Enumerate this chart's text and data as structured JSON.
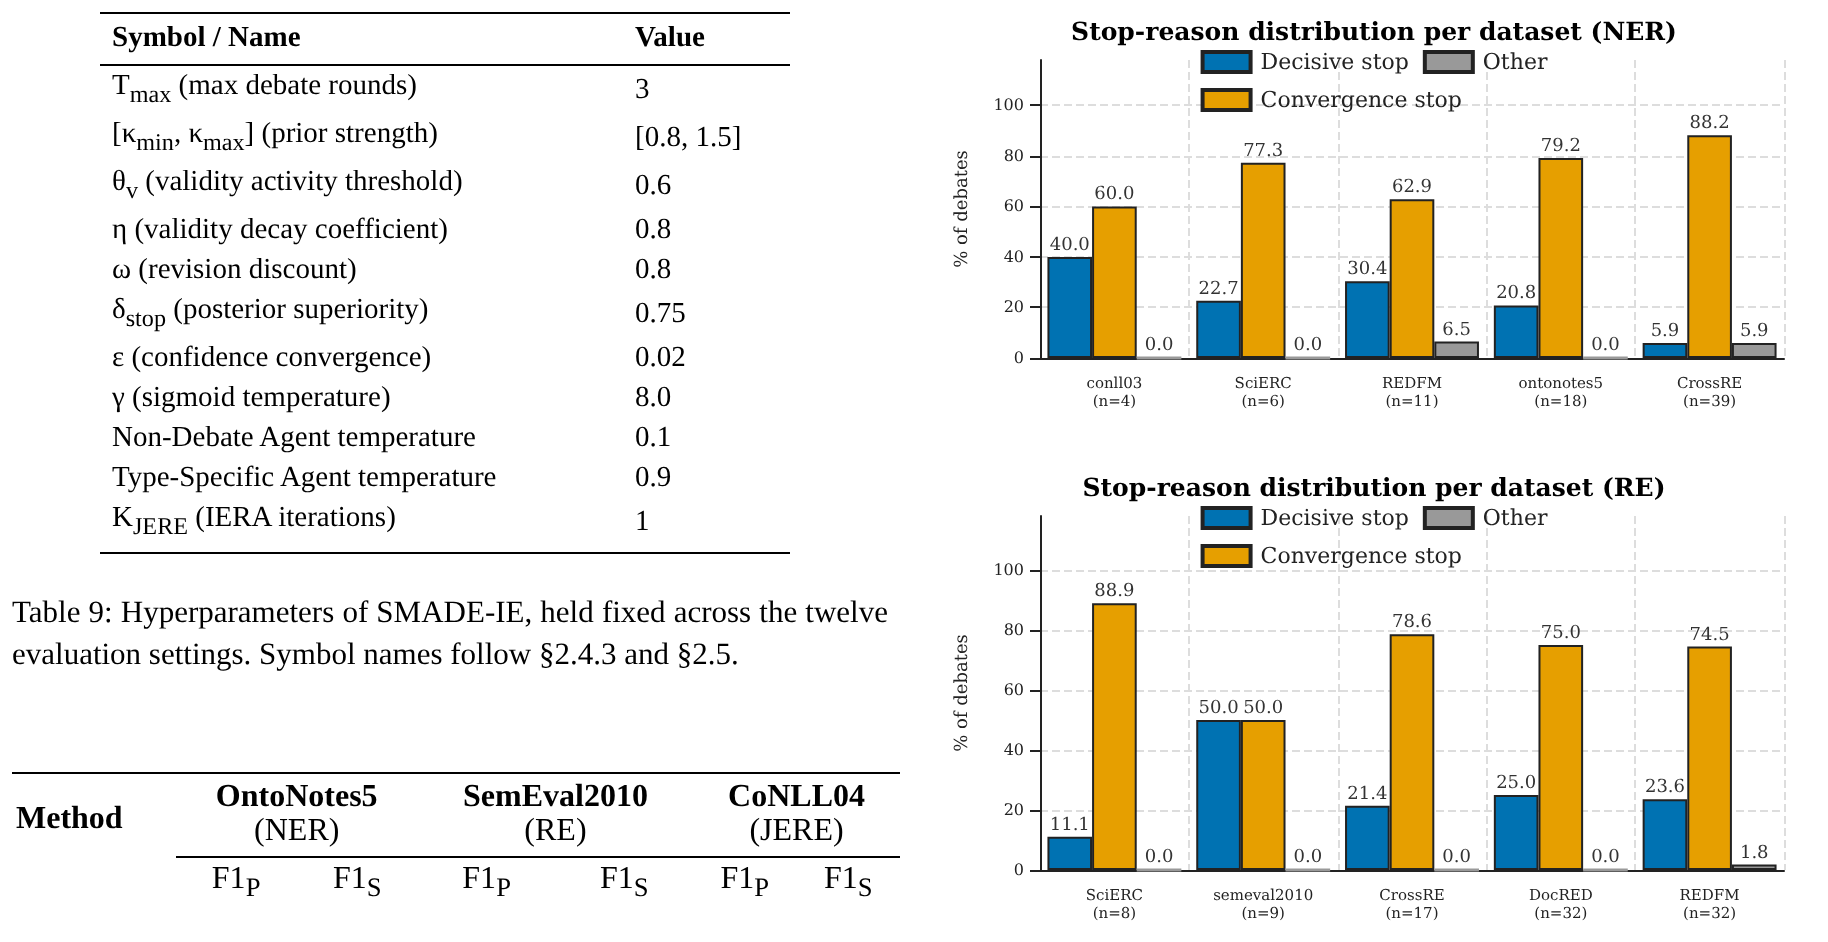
{
  "chart_data": [
    {
      "type": "other",
      "annotations": [
        "Symbol / Name",
        "Value",
        "T$_{max}$ (max debate rounds)",
        "3",
        "[κ$_{min}$, κ$_{max}$] (prior strength)",
        "[0.8, 1.5]",
        "θ$_{v}$ (validity activity threshold)",
        "0.6",
        "η (validity decay coefficient)",
        "0.8",
        "ω (revision discount)",
        "0.8",
        "δ$_{stop}$ (posterior superiority)",
        "0.75",
        "ε (confidence convergence)",
        "0.02",
        "γ (sigmoid temperature)",
        "8.0",
        "Non-Debate Agent temperature",
        "0.1",
        "Type-Specific Agent temperature",
        "0.9",
        "K$_{JERE}$ (IERA iterations)",
        "1",
        "Table 9: Hyperparameters of SMADE-IE, held fixed across the twelve evaluation settings. Symbol names follow §2.4.3 and §2.5."
      ]
    },
    {
      "type": "other",
      "annotations": [
        "Method",
        "OntoNotes5",
        "(NER)",
        "SemEval2010",
        "(RE)",
        "CoNLL04",
        "(JERE)",
        "F1$_{P}$",
        "F1$_{S}$",
        "F1$_{P}$",
        "F1$_{S}$",
        "F1$_{P}$",
        "F1$_{S}$"
      ]
    },
    {
      "type": "bar",
      "title": "Stop-reason distribution per dataset (NER)",
      "ylabel": "% of debates",
      "categories": [
        "conll03\n(n=4)",
        "SciERC\n(n=6)",
        "REDFM\n(n=11)",
        "ontonotes5\n(n=18)",
        "CrossRE\n(n=39)"
      ],
      "series": [
        {
          "name": "Decisive stop",
          "color": "#0072b2",
          "values": [
            40.0,
            22.7,
            30.4,
            20.8,
            5.9
          ],
          "value_labels": [
            "40.0",
            "22.7",
            "30.4",
            "20.8",
            "5.9"
          ]
        },
        {
          "name": "Convergence stop",
          "color": "#e69f00",
          "values": [
            60.0,
            77.3,
            62.9,
            79.2,
            88.2
          ],
          "value_labels": [
            "60.0",
            "77.3",
            "62.9",
            "79.2",
            "88.2"
          ]
        },
        {
          "name": "Other",
          "color": "#999999",
          "values": [
            0.0,
            0.0,
            6.5,
            0.0,
            5.9
          ],
          "value_labels": [
            "0.0",
            "0.0",
            "6.5",
            "0.0",
            "5.9"
          ]
        }
      ],
      "ylim": [
        0,
        118
      ],
      "yticks": [
        0,
        20,
        40,
        60,
        80,
        100
      ],
      "grid": true,
      "legend": "top"
    },
    {
      "type": "bar",
      "title": "Stop-reason distribution per dataset (RE)",
      "ylabel": "% of debates",
      "categories": [
        "SciERC\n(n=8)",
        "semeval2010\n(n=9)",
        "CrossRE\n(n=17)",
        "DocRED\n(n=32)",
        "REDFM\n(n=32)"
      ],
      "series": [
        {
          "name": "Decisive stop",
          "color": "#0072b2",
          "values": [
            11.1,
            50.0,
            21.4,
            25.0,
            23.6
          ],
          "value_labels": [
            "11.1",
            "50.0",
            "21.4",
            "25.0",
            "23.6"
          ]
        },
        {
          "name": "Convergence stop",
          "color": "#e69f00",
          "values": [
            88.9,
            50.0,
            78.6,
            75.0,
            74.5
          ],
          "value_labels": [
            "88.9",
            "50.0",
            "78.6",
            "75.0",
            "74.5"
          ]
        },
        {
          "name": "Other",
          "color": "#999999",
          "values": [
            0.0,
            0.0,
            0.0,
            0.0,
            1.8
          ],
          "value_labels": [
            "0.0",
            "0.0",
            "0.0",
            "0.0",
            "1.8"
          ]
        }
      ],
      "ylim": [
        0,
        118
      ],
      "yticks": [
        0,
        20,
        40,
        60,
        80,
        100
      ],
      "grid": true,
      "legend": "top"
    }
  ]
}
